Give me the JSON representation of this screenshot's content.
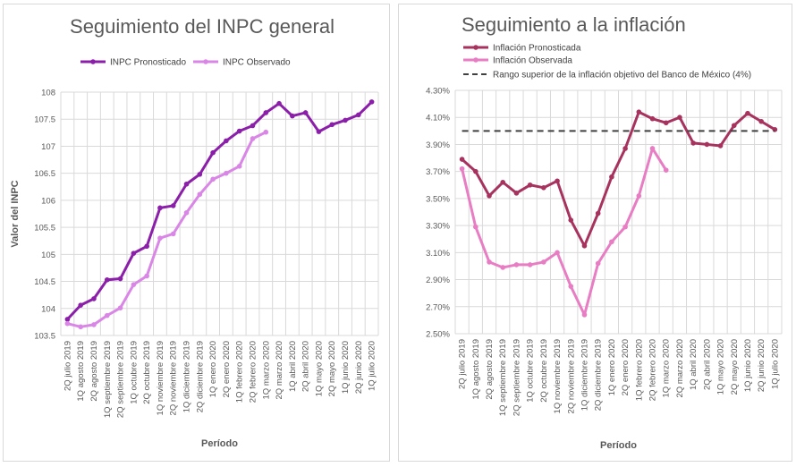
{
  "chart_data": [
    {
      "type": "line",
      "title": "Seguimiento del INPC general",
      "xlabel": "Período",
      "ylabel": "Valor del INPC",
      "ylim": [
        103.5,
        108
      ],
      "yticks": [
        "103.5",
        "104",
        "104.5",
        "105",
        "105.5",
        "106",
        "106.5",
        "107",
        "107.5",
        "108"
      ],
      "legend_position": "top",
      "grid": true,
      "categories": [
        "2Q julio 2019",
        "1Q agosto 2019",
        "2Q agosto 2019",
        "1Q septiembre 2019",
        "2Q septiembre 2019",
        "1Q octubre 2019",
        "2Q octubre 2019",
        "1Q noviembre 2019",
        "2Q noviembre 2019",
        "1Q diciembre 2019",
        "2Q diciembre 2019",
        "1Q enero 2020",
        "2Q enero 2020",
        "1Q febrero 2020",
        "2Q febrero 2020",
        "1Q marzo 2020",
        "2Q marzo 2020",
        "1Q abril 2020",
        "2Q abril 2020",
        "1Q mayo 2020",
        "2Q mayo 2020",
        "1Q junio 2020",
        "2Q junio 2020",
        "1Q julio 2020"
      ],
      "series": [
        {
          "name": "INPC Pronosticado",
          "color": "#8B1FA9",
          "values": [
            103.8,
            104.06,
            104.18,
            104.53,
            104.55,
            105.02,
            105.15,
            105.86,
            105.9,
            106.3,
            106.48,
            106.88,
            107.1,
            107.28,
            107.38,
            107.62,
            107.79,
            107.56,
            107.62,
            107.27,
            107.4,
            107.48,
            107.58,
            107.82
          ]
        },
        {
          "name": "INPC Observado",
          "color": "#D986E6",
          "values": [
            103.72,
            103.66,
            103.7,
            103.87,
            104.01,
            104.44,
            104.6,
            105.3,
            105.38,
            105.77,
            106.11,
            106.39,
            106.5,
            106.63,
            107.14,
            107.26,
            null,
            null,
            null,
            null,
            null,
            null,
            null,
            null
          ]
        }
      ]
    },
    {
      "type": "line",
      "title": "Seguimiento a la inflación",
      "xlabel": "Período",
      "ylabel": "",
      "ylim": [
        2.5,
        4.3
      ],
      "yticks": [
        "2.50%",
        "2.70%",
        "2.90%",
        "3.10%",
        "3.30%",
        "3.50%",
        "3.70%",
        "3.90%",
        "4.10%",
        "4.30%"
      ],
      "legend_position": "top-left",
      "grid": true,
      "categories": [
        "2Q julio 2019",
        "1Q agosto 2019",
        "2Q agosto 2019",
        "1Q septiembre 2019",
        "2Q septiembre 2019",
        "1Q octubre 2019",
        "2Q octubre 2019",
        "1Q noviembre 2019",
        "2Q noviembre 2019",
        "1Q diciembre 2019",
        "2Q diciembre 2019",
        "1Q enero 2020",
        "2Q enero 2020",
        "1Q febrero 2020",
        "2Q febrero 2020",
        "1Q marzo 2020",
        "2Q marzo 2020",
        "1Q abril 2020",
        "2Q abril 2020",
        "1Q mayo 2020",
        "2Q mayo 2020",
        "1Q junio 2020",
        "2Q junio 2020",
        "1Q julio 2020"
      ],
      "series": [
        {
          "name": "Inflación Pronosticada",
          "color": "#A8325E",
          "values": [
            3.79,
            3.7,
            3.52,
            3.62,
            3.54,
            3.6,
            3.58,
            3.63,
            3.34,
            3.15,
            3.39,
            3.66,
            3.87,
            4.14,
            4.09,
            4.06,
            4.1,
            3.91,
            3.9,
            3.89,
            4.04,
            4.13,
            4.07,
            4.01
          ]
        },
        {
          "name": "Inflación Observada",
          "color": "#E87DC4",
          "values": [
            3.72,
            3.29,
            3.03,
            2.99,
            3.01,
            3.01,
            3.03,
            3.1,
            2.85,
            2.64,
            3.02,
            3.18,
            3.29,
            3.52,
            3.87,
            3.71,
            null,
            null,
            null,
            null,
            null,
            null,
            null,
            null
          ]
        },
        {
          "name": "Rango superior de la inflación objetivo del Banco de México (4%)",
          "color": "#404040",
          "dashed": true,
          "values": [
            4.0,
            4.0,
            4.0,
            4.0,
            4.0,
            4.0,
            4.0,
            4.0,
            4.0,
            4.0,
            4.0,
            4.0,
            4.0,
            4.0,
            4.0,
            4.0,
            4.0,
            4.0,
            4.0,
            4.0,
            4.0,
            4.0,
            4.0,
            4.0
          ]
        }
      ]
    }
  ]
}
